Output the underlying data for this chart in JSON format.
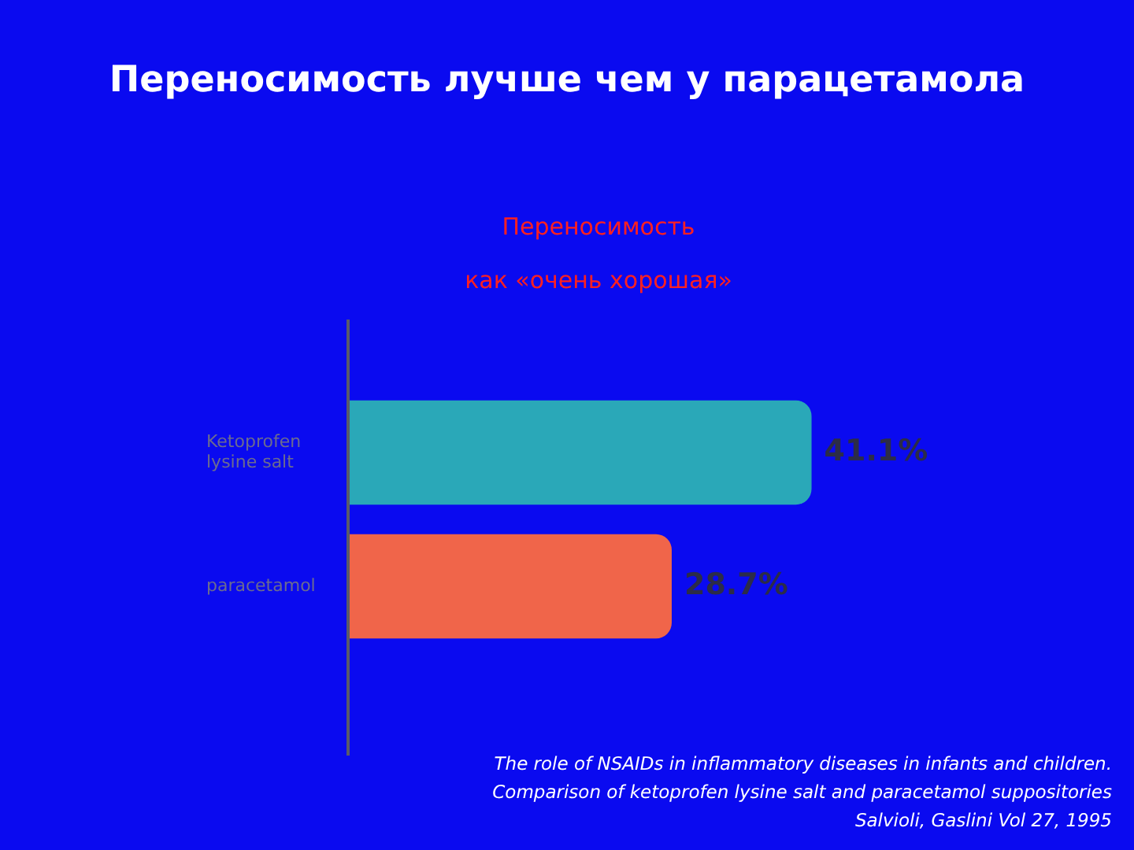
{
  "chart_data": {
    "type": "bar",
    "orientation": "horizontal",
    "title": "Переносимость лучше чем у парацетамола",
    "subtitle": "Переносимость\nкак «очень хорошая»",
    "categories": [
      "Ketoprofen lysine salt",
      "paracetamol"
    ],
    "values": [
      41.1,
      28.7
    ],
    "colors": [
      "#2aa8b8",
      "#f0654a"
    ],
    "value_labels": [
      "41.1%",
      "28.7%"
    ],
    "annotations": [
      "The role of NSAIDs in inflammatory diseases in infants and children.",
      "Comparison of ketoprofen lysine salt and paracetamol suppositories",
      "Salvioli, Gaslini Vol 27, 1995"
    ],
    "legend": false
  }
}
